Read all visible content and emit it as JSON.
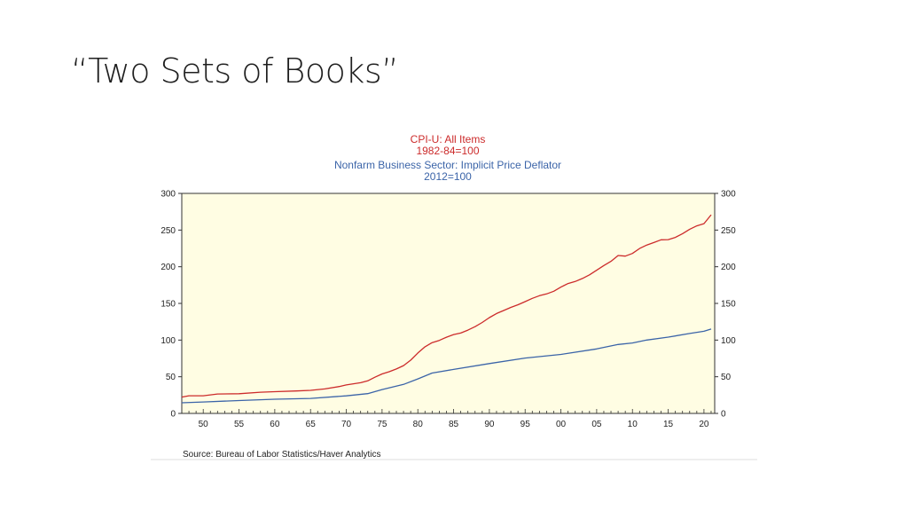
{
  "slide": {
    "title": "“Two Sets of Books”"
  },
  "colors": {
    "plot_bg": "#fffde3",
    "cpi": "#cc2b2b",
    "deflator": "#3b64a8"
  },
  "chart_data": {
    "type": "line",
    "title_lines": [
      {
        "text": "CPI-U: All Items",
        "series": "cpi"
      },
      {
        "text": "1982-84=100",
        "series": "cpi"
      },
      {
        "text": "Nonfarm Business Sector: Implicit Price Deflator",
        "series": "deflator"
      },
      {
        "text": "2012=100",
        "series": "deflator"
      }
    ],
    "x_range": [
      1947,
      2021.5
    ],
    "ylim": [
      0,
      300
    ],
    "y_ticks": [
      0,
      50,
      100,
      150,
      200,
      250,
      300
    ],
    "y_tick_labels": [
      "0",
      "50",
      "100",
      "150",
      "200",
      "250",
      "300"
    ],
    "x_ticks": [
      1950,
      1955,
      1960,
      1965,
      1970,
      1975,
      1980,
      1985,
      1990,
      1995,
      2000,
      2005,
      2010,
      2015,
      2020
    ],
    "x_tick_labels": [
      "50",
      "55",
      "60",
      "65",
      "70",
      "75",
      "80",
      "85",
      "90",
      "95",
      "00",
      "05",
      "10",
      "15",
      "20"
    ],
    "source": "Source:  Bureau of Labor Statistics/Haver Analytics",
    "series": [
      {
        "name": "CPI-U: All Items",
        "key": "cpi",
        "x": [
          1947,
          1948,
          1950,
          1952,
          1955,
          1958,
          1960,
          1963,
          1965,
          1967,
          1969,
          1970,
          1972,
          1973,
          1974,
          1975,
          1976,
          1977,
          1978,
          1979,
          1980,
          1981,
          1982,
          1983,
          1984,
          1985,
          1986,
          1987,
          1988,
          1989,
          1990,
          1991,
          1992,
          1993,
          1994,
          1995,
          1996,
          1997,
          1998,
          1999,
          2000,
          2001,
          2002,
          2003,
          2004,
          2005,
          2006,
          2007,
          2008,
          2009,
          2010,
          2011,
          2012,
          2013,
          2014,
          2015,
          2016,
          2017,
          2018,
          2019,
          2020,
          2021
        ],
        "values": [
          22.3,
          24.1,
          24.1,
          26.5,
          26.8,
          28.9,
          29.6,
          30.6,
          31.5,
          33.4,
          36.7,
          38.8,
          41.8,
          44.4,
          49.3,
          53.8,
          56.9,
          60.6,
          65.2,
          72.6,
          82.4,
          90.9,
          96.5,
          99.6,
          103.9,
          107.6,
          109.6,
          113.6,
          118.3,
          124.0,
          130.7,
          136.2,
          140.3,
          144.5,
          148.2,
          152.4,
          156.9,
          160.5,
          163.0,
          166.6,
          172.2,
          177.1,
          179.9,
          184.0,
          188.9,
          195.3,
          201.6,
          207.3,
          215.3,
          214.5,
          218.1,
          224.9,
          229.6,
          233.0,
          236.7,
          237.0,
          240.0,
          245.1,
          251.1,
          255.7,
          258.8,
          270.9
        ]
      },
      {
        "name": "Nonfarm Business Sector: Implicit Price Deflator",
        "key": "deflator",
        "x": [
          1947,
          1950,
          1955,
          1960,
          1965,
          1970,
          1973,
          1975,
          1978,
          1980,
          1982,
          1985,
          1990,
          1995,
          2000,
          2005,
          2008,
          2010,
          2012,
          2015,
          2018,
          2020,
          2021
        ],
        "values": [
          14.5,
          15.6,
          17.5,
          19.3,
          20.5,
          24.0,
          27.0,
          32.5,
          39.5,
          47.0,
          55.0,
          60.0,
          68.0,
          75.5,
          80.5,
          88.0,
          94.0,
          96.0,
          100.0,
          104.0,
          109.0,
          112.0,
          115.0
        ]
      }
    ]
  }
}
